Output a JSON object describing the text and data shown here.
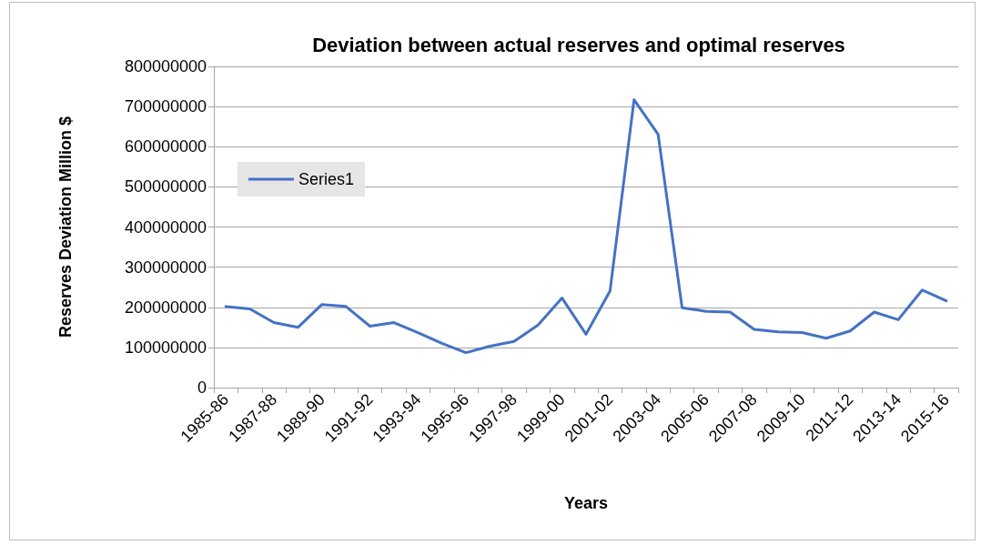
{
  "chart_data": {
    "type": "line",
    "title": "Deviation between actual reserves and optimal reserves",
    "xlabel": "Years",
    "ylabel": "Reserves Deviation Million $",
    "categories": [
      "1985-86",
      null,
      "1987-88",
      null,
      "1989-90",
      null,
      "1991-92",
      null,
      "1993-94",
      null,
      "1995-96",
      null,
      "1997-98",
      null,
      "1999-00",
      null,
      "2001-02",
      null,
      "2003-04",
      null,
      "2005-06",
      null,
      "2007-08",
      null,
      "2009-10",
      null,
      "2011-12",
      null,
      "2013-14",
      null,
      "2015-16"
    ],
    "series": [
      {
        "name": "Series1",
        "color": "#4472c4",
        "values": [
          202000000,
          196000000,
          162000000,
          150000000,
          207000000,
          202000000,
          153000000,
          162000000,
          137000000,
          110000000,
          87000000,
          103000000,
          115000000,
          156000000,
          223000000,
          133000000,
          241000000,
          717000000,
          631000000,
          199000000,
          190000000,
          188000000,
          145000000,
          139000000,
          137000000,
          123000000,
          141000000,
          188000000,
          169000000,
          243000000,
          216000000
        ]
      }
    ],
    "ylim": [
      0,
      800000000
    ],
    "yticks": [
      0,
      100000000,
      200000000,
      300000000,
      400000000,
      500000000,
      600000000,
      700000000,
      800000000
    ],
    "grid": "y",
    "legend": "left",
    "marker": "none",
    "line_style": "solid"
  }
}
